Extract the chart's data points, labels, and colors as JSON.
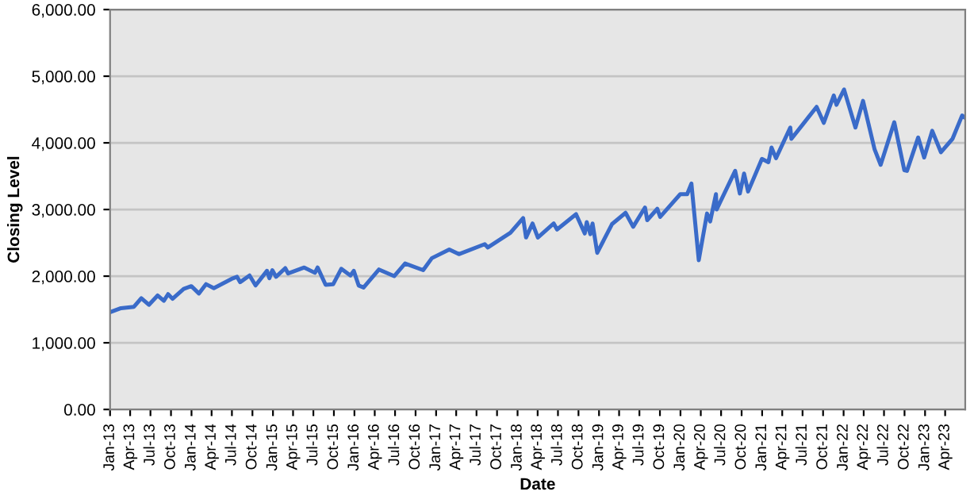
{
  "chart_data": {
    "type": "line",
    "xlabel": "Date",
    "ylabel": "Closing Level",
    "grid": "y",
    "marker": "none",
    "line_style": "solid",
    "xlim": [
      "2013-01-01",
      "2023-06-30"
    ],
    "xticks": [
      {
        "value": "2013-01-01",
        "label": "Jan-13"
      },
      {
        "value": "2013-04-01",
        "label": "Apr-13"
      },
      {
        "value": "2013-07-01",
        "label": "Jul-13"
      },
      {
        "value": "2013-10-01",
        "label": "Oct-13"
      },
      {
        "value": "2014-01-01",
        "label": "Jan-14"
      },
      {
        "value": "2014-04-01",
        "label": "Apr-14"
      },
      {
        "value": "2014-07-01",
        "label": "Jul-14"
      },
      {
        "value": "2014-10-01",
        "label": "Oct-14"
      },
      {
        "value": "2015-01-01",
        "label": "Jan-15"
      },
      {
        "value": "2015-04-01",
        "label": "Apr-15"
      },
      {
        "value": "2015-07-01",
        "label": "Jul-15"
      },
      {
        "value": "2015-10-01",
        "label": "Oct-15"
      },
      {
        "value": "2016-01-01",
        "label": "Jan-16"
      },
      {
        "value": "2016-04-01",
        "label": "Apr-16"
      },
      {
        "value": "2016-07-01",
        "label": "Jul-16"
      },
      {
        "value": "2016-10-01",
        "label": "Oct-16"
      },
      {
        "value": "2017-01-01",
        "label": "Jan-17"
      },
      {
        "value": "2017-04-01",
        "label": "Apr-17"
      },
      {
        "value": "2017-07-01",
        "label": "Jul-17"
      },
      {
        "value": "2017-10-01",
        "label": "Oct-17"
      },
      {
        "value": "2018-01-01",
        "label": "Jan-18"
      },
      {
        "value": "2018-04-01",
        "label": "Apr-18"
      },
      {
        "value": "2018-07-01",
        "label": "Jul-18"
      },
      {
        "value": "2018-10-01",
        "label": "Oct-18"
      },
      {
        "value": "2019-01-01",
        "label": "Jan-19"
      },
      {
        "value": "2019-04-01",
        "label": "Apr-19"
      },
      {
        "value": "2019-07-01",
        "label": "Jul-19"
      },
      {
        "value": "2019-10-01",
        "label": "Oct-19"
      },
      {
        "value": "2020-01-01",
        "label": "Jan-20"
      },
      {
        "value": "2020-04-01",
        "label": "Apr-20"
      },
      {
        "value": "2020-07-01",
        "label": "Jul-20"
      },
      {
        "value": "2020-10-01",
        "label": "Oct-20"
      },
      {
        "value": "2021-01-01",
        "label": "Jan-21"
      },
      {
        "value": "2021-04-01",
        "label": "Apr-21"
      },
      {
        "value": "2021-07-01",
        "label": "Jul-21"
      },
      {
        "value": "2021-10-01",
        "label": "Oct-21"
      },
      {
        "value": "2022-01-01",
        "label": "Jan-22"
      },
      {
        "value": "2022-04-01",
        "label": "Apr-22"
      },
      {
        "value": "2022-07-01",
        "label": "Jul-22"
      },
      {
        "value": "2022-10-01",
        "label": "Oct-22"
      },
      {
        "value": "2023-01-01",
        "label": "Jan-23"
      },
      {
        "value": "2023-04-01",
        "label": "Apr-23"
      }
    ],
    "ylim": [
      0,
      6000
    ],
    "yticks": [
      {
        "value": 0,
        "label": "0.00"
      },
      {
        "value": 1000,
        "label": "1,000.00"
      },
      {
        "value": 2000,
        "label": "2,000.00"
      },
      {
        "value": 3000,
        "label": "3,000.00"
      },
      {
        "value": 4000,
        "label": "4,000.00"
      },
      {
        "value": 5000,
        "label": "5,000.00"
      },
      {
        "value": 6000,
        "label": "6,000.00"
      }
    ],
    "x": [
      "2013-01-02",
      "2013-02-19",
      "2013-04-18",
      "2013-05-21",
      "2013-06-24",
      "2013-08-02",
      "2013-08-30",
      "2013-09-18",
      "2013-10-08",
      "2013-11-27",
      "2013-12-31",
      "2014-02-03",
      "2014-03-07",
      "2014-04-11",
      "2014-06-30",
      "2014-07-24",
      "2014-08-07",
      "2014-09-18",
      "2014-10-15",
      "2014-12-05",
      "2014-12-16",
      "2014-12-29",
      "2015-01-15",
      "2015-02-25",
      "2015-03-10",
      "2015-05-21",
      "2015-07-08",
      "2015-07-20",
      "2015-08-25",
      "2015-09-28",
      "2015-11-03",
      "2015-12-14",
      "2015-12-29",
      "2016-01-20",
      "2016-02-11",
      "2016-04-20",
      "2016-06-27",
      "2016-08-15",
      "2016-11-04",
      "2016-12-13",
      "2017-03-01",
      "2017-04-13",
      "2017-08-07",
      "2017-08-21",
      "2017-11-30",
      "2018-01-26",
      "2018-02-08",
      "2018-03-09",
      "2018-04-02",
      "2018-06-12",
      "2018-06-27",
      "2018-09-20",
      "2018-10-29",
      "2018-11-07",
      "2018-11-23",
      "2018-12-03",
      "2018-12-24",
      "2019-02-28",
      "2019-04-30",
      "2019-06-03",
      "2019-07-26",
      "2019-08-05",
      "2019-09-19",
      "2019-10-02",
      "2019-12-31",
      "2020-01-31",
      "2020-02-19",
      "2020-03-23",
      "2020-04-29",
      "2020-05-13",
      "2020-06-08",
      "2020-06-11",
      "2020-09-02",
      "2020-09-23",
      "2020-10-12",
      "2020-10-30",
      "2020-12-31",
      "2021-01-29",
      "2021-02-12",
      "2021-03-04",
      "2021-05-07",
      "2021-05-12",
      "2021-09-02",
      "2021-10-04",
      "2021-11-18",
      "2021-11-30",
      "2022-01-03",
      "2022-02-23",
      "2022-03-29",
      "2022-05-20",
      "2022-06-16",
      "2022-08-16",
      "2022-09-30",
      "2022-10-12",
      "2022-12-01",
      "2022-12-28",
      "2023-02-02",
      "2023-03-13",
      "2023-05-04",
      "2023-06-16",
      "2023-06-28"
    ],
    "series": [
      {
        "color": "#3a6bc9",
        "values": [
          1460,
          1520,
          1540,
          1670,
          1570,
          1710,
          1630,
          1730,
          1660,
          1810,
          1850,
          1740,
          1880,
          1820,
          1960,
          1990,
          1910,
          2010,
          1860,
          2080,
          1970,
          2090,
          1990,
          2120,
          2040,
          2130,
          2050,
          2130,
          1870,
          1880,
          2110,
          2010,
          2080,
          1860,
          1830,
          2100,
          2000,
          2190,
          2090,
          2270,
          2400,
          2330,
          2480,
          2430,
          2650,
          2870,
          2580,
          2790,
          2580,
          2790,
          2700,
          2930,
          2640,
          2810,
          2630,
          2790,
          2350,
          2780,
          2950,
          2740,
          3030,
          2840,
          3010,
          2890,
          3230,
          3230,
          3390,
          2240,
          2940,
          2820,
          3230,
          3000,
          3580,
          3240,
          3540,
          3270,
          3760,
          3710,
          3930,
          3770,
          4230,
          4060,
          4540,
          4300,
          4710,
          4570,
          4800,
          4230,
          4630,
          3900,
          3670,
          4310,
          3590,
          3580,
          4080,
          3780,
          4180,
          3860,
          4060,
          4410,
          4380
        ]
      }
    ]
  }
}
